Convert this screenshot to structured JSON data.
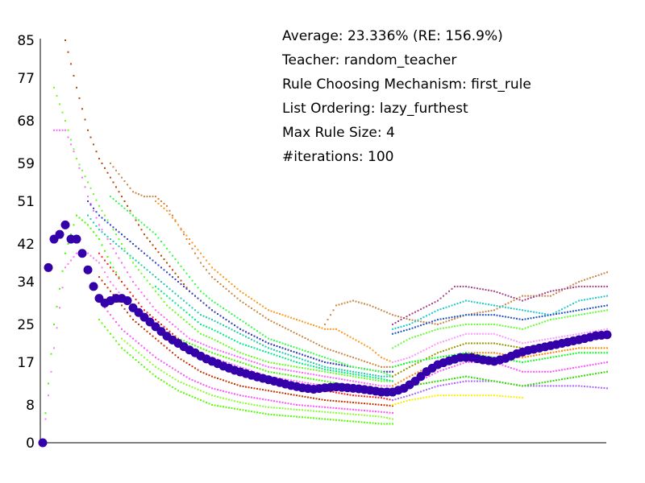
{
  "chart_data": {
    "type": "scatter",
    "title": "",
    "xlabel": "",
    "ylabel": "",
    "ylim": [
      0,
      85
    ],
    "xlim": [
      0,
      100
    ],
    "yticks": [
      0,
      8,
      17,
      25,
      34,
      42,
      51,
      59,
      68,
      77,
      85
    ],
    "grid": false,
    "annotations": [
      "Average: 23.336% (RE: 156.9%)",
      "Teacher: random_teacher",
      "Rule Choosing Mechanism: first_rule",
      "List Ordering: lazy_furthest",
      "Max Rule Size: 4",
      "#iterations: 100"
    ],
    "average_series": {
      "color": "#3300aa",
      "x": [
        0,
        1,
        2,
        3,
        4,
        5,
        6,
        7,
        8,
        9,
        10,
        11,
        12,
        13,
        14,
        15,
        16,
        17,
        18,
        19,
        20,
        21,
        22,
        23,
        24,
        25,
        26,
        27,
        28,
        29,
        30,
        32,
        34,
        36,
        38,
        40,
        42,
        44,
        46,
        48,
        50,
        52,
        54,
        56,
        58,
        60,
        62,
        64,
        66,
        68,
        70,
        72,
        74,
        76,
        78,
        80,
        82,
        84,
        86,
        88,
        90,
        92,
        94,
        96,
        98,
        100
      ],
      "y": [
        0,
        37,
        43,
        44,
        46,
        43,
        43,
        40,
        36.5,
        33,
        30.5,
        29.5,
        30,
        30.5,
        30.5,
        30,
        28.5,
        27.5,
        26.5,
        25.5,
        24.5,
        23.5,
        22.5,
        21.7,
        21,
        20.3,
        19.6,
        19,
        18.3,
        17.7,
        17.2,
        16.2,
        15.3,
        14.6,
        13.9,
        13.3,
        12.7,
        12.1,
        11.6,
        11.3,
        11.6,
        11.8,
        11.6,
        11.4,
        11.1,
        10.7,
        10.7,
        11.5,
        13,
        15,
        16.5,
        17.3,
        18,
        18,
        17.5,
        17.2,
        17.8,
        18.8,
        19.5,
        20,
        20.5,
        21,
        21.5,
        22,
        22.6,
        22.8
      ]
    },
    "series": [
      {
        "color": "#ff77ff",
        "x": [
          0,
          2,
          4,
          6,
          8,
          10,
          12,
          14,
          16,
          18,
          20,
          22,
          24,
          26,
          28,
          30,
          35,
          40,
          45,
          50,
          55,
          60,
          62
        ],
        "y": [
          0,
          20,
          37,
          40,
          40,
          38,
          34,
          31,
          28,
          26,
          24,
          22,
          21,
          20,
          19,
          18,
          16,
          14,
          13,
          12,
          12,
          11,
          11
        ]
      },
      {
        "color": "#44ff00",
        "x": [
          0,
          2,
          4,
          6,
          8,
          10,
          12,
          14,
          16,
          18,
          20,
          22,
          24,
          26,
          28,
          30,
          35,
          40,
          45,
          50,
          55,
          60,
          62
        ],
        "y": [
          0,
          25,
          40,
          48,
          46,
          43,
          38,
          34,
          31,
          28,
          26,
          24,
          22,
          21,
          20,
          19,
          17,
          15,
          14,
          13,
          12,
          11.5,
          11
        ]
      },
      {
        "color": "#ff66ff",
        "x": [
          2,
          4,
          6,
          8,
          10,
          12,
          14,
          16,
          18,
          20,
          22,
          24,
          26,
          28,
          30,
          35,
          40,
          45,
          50,
          55,
          60,
          62
        ],
        "y": [
          66,
          66,
          60,
          52,
          46,
          42,
          38,
          34,
          31,
          28,
          26,
          24,
          22,
          21,
          20,
          18,
          16,
          15,
          14,
          13,
          12,
          12
        ]
      },
      {
        "color": "#66ff22",
        "x": [
          2,
          4,
          6,
          8,
          10,
          12,
          14,
          16,
          18,
          20,
          22,
          24,
          26,
          28,
          30,
          35,
          40,
          45,
          50,
          55,
          60,
          62
        ],
        "y": [
          75,
          68,
          60,
          55,
          50,
          46,
          42,
          38,
          35,
          32,
          29,
          27,
          25,
          23,
          22,
          19,
          17,
          16,
          15,
          14,
          13,
          13
        ]
      },
      {
        "color": "#bb4400",
        "x": [
          4,
          6,
          8,
          10,
          12,
          14,
          16,
          18,
          20,
          22,
          24,
          26,
          28,
          30,
          35,
          40,
          45,
          50,
          55,
          60,
          62
        ],
        "y": [
          85,
          75,
          66,
          60,
          56,
          52,
          48,
          44,
          41,
          38,
          35,
          32,
          30,
          28,
          24,
          21,
          19,
          17,
          16,
          15,
          15
        ]
      },
      {
        "color": "#cc8844",
        "x": [
          12,
          14,
          16,
          18,
          20,
          22,
          24,
          26,
          28,
          30,
          35,
          40,
          45,
          50,
          55,
          60,
          62
        ],
        "y": [
          59,
          56,
          53,
          52,
          52,
          50,
          46,
          42,
          38,
          35,
          30,
          26,
          23,
          20,
          18,
          16,
          16
        ]
      },
      {
        "color": "#ff9922",
        "x": [
          20,
          22,
          24,
          26,
          28,
          30,
          35,
          40,
          45,
          50,
          52,
          55,
          58,
          60,
          62
        ],
        "y": [
          51,
          49,
          46,
          43,
          40,
          37,
          32,
          28,
          26,
          24,
          24,
          22,
          20,
          18,
          17
        ]
      },
      {
        "color": "#3344cc",
        "x": [
          8,
          10,
          12,
          14,
          16,
          18,
          20,
          22,
          24,
          26,
          28,
          30,
          35,
          40,
          45,
          50,
          55,
          60,
          62
        ],
        "y": [
          51,
          48,
          46,
          44,
          42,
          40,
          38,
          36,
          34,
          32,
          30,
          28,
          24,
          21,
          19,
          17,
          16,
          15,
          15
        ]
      },
      {
        "color": "#22ccaa",
        "x": [
          8,
          10,
          12,
          14,
          16,
          18,
          20,
          22,
          24,
          26,
          28,
          30,
          35,
          40,
          45,
          50,
          55,
          60,
          62
        ],
        "y": [
          48,
          45,
          43,
          41,
          39,
          37,
          35,
          33,
          31,
          29,
          27,
          26,
          23,
          20,
          18,
          16,
          15,
          14,
          14
        ]
      },
      {
        "color": "#33ff44",
        "x": [
          12,
          14,
          16,
          18,
          20,
          22,
          24,
          26,
          28,
          30,
          35,
          40,
          45,
          50,
          55,
          60,
          62
        ],
        "y": [
          52,
          50,
          48,
          46,
          44,
          41,
          38,
          35,
          32,
          30,
          26,
          22,
          20,
          18,
          16,
          15,
          14
        ]
      },
      {
        "color": "#ff2222",
        "x": [
          10,
          12,
          14,
          16,
          18,
          20,
          22,
          24,
          26,
          28,
          30,
          35,
          40,
          45,
          50,
          55,
          60,
          62
        ],
        "y": [
          40,
          37,
          34,
          31,
          28,
          26,
          24,
          22,
          20,
          18,
          17,
          15,
          13,
          12,
          11,
          10,
          9.5,
          9
        ]
      },
      {
        "color": "#cc3300",
        "x": [
          10,
          12,
          14,
          16,
          18,
          20,
          22,
          24,
          26,
          28,
          30,
          35,
          40,
          45,
          50,
          55,
          60,
          62
        ],
        "y": [
          35,
          32,
          29,
          26,
          24,
          22,
          20,
          18,
          16.5,
          15,
          14,
          12,
          11,
          10,
          9,
          8.5,
          8,
          7.8
        ]
      },
      {
        "color": "#ff55ff",
        "x": [
          10,
          12,
          14,
          16,
          18,
          20,
          22,
          24,
          26,
          28,
          30,
          35,
          40,
          45,
          50,
          55,
          60,
          62
        ],
        "y": [
          30,
          27,
          24,
          22,
          20,
          18,
          16.5,
          15,
          13.5,
          12.5,
          11.5,
          10,
          9,
          8,
          7.5,
          7,
          6.5,
          6.3
        ]
      },
      {
        "color": "#55ff00",
        "x": [
          10,
          12,
          14,
          16,
          18,
          20,
          22,
          24,
          26,
          28,
          30,
          35,
          40,
          45,
          50,
          55,
          60,
          62
        ],
        "y": [
          26,
          23,
          20,
          18,
          16,
          14,
          12.5,
          11,
          10,
          9,
          8,
          7,
          6,
          5.5,
          5,
          4.5,
          4,
          4
        ]
      },
      {
        "color": "#00ee88",
        "x": [
          20,
          22,
          24,
          26,
          28,
          30,
          35,
          40,
          45,
          50,
          55,
          60,
          62
        ],
        "y": [
          33,
          31,
          29,
          27,
          25,
          24,
          21,
          19,
          17,
          15.5,
          14.5,
          13.5,
          13
        ]
      },
      {
        "color": "#88ff33",
        "x": [
          14,
          16,
          18,
          20,
          22,
          24,
          26,
          28,
          30,
          35,
          40,
          45,
          50,
          55,
          60,
          62
        ],
        "y": [
          22,
          20,
          18,
          16,
          14.5,
          13,
          12,
          11,
          10,
          8.5,
          7.5,
          7,
          6.5,
          6,
          5.5,
          5
        ]
      },
      {
        "color": "#cc8844",
        "x": [
          50,
          52,
          55,
          58,
          60,
          62,
          65,
          70,
          75,
          80,
          85,
          90,
          95,
          100
        ],
        "y": [
          25,
          29,
          30,
          29,
          28,
          27,
          26,
          25,
          27,
          28,
          31,
          31,
          34,
          36
        ]
      },
      {
        "color": "#aa4488",
        "x": [
          62,
          65,
          70,
          73,
          75,
          80,
          85,
          90,
          95,
          100
        ],
        "y": [
          25,
          27,
          30,
          33,
          33,
          32,
          30,
          32,
          33,
          33
        ]
      },
      {
        "color": "#22cccc",
        "x": [
          62,
          65,
          70,
          75,
          80,
          85,
          90,
          95,
          100
        ],
        "y": [
          24,
          25,
          28,
          30,
          29,
          28,
          27,
          30,
          31
        ]
      },
      {
        "color": "#2255cc",
        "x": [
          62,
          65,
          70,
          75,
          80,
          85,
          90,
          95,
          100
        ],
        "y": [
          23,
          24,
          26,
          27,
          27,
          26,
          27,
          28,
          29
        ]
      },
      {
        "color": "#66ff33",
        "x": [
          62,
          65,
          70,
          75,
          80,
          85,
          90,
          95,
          100
        ],
        "y": [
          20,
          22,
          24,
          25,
          25,
          24,
          26,
          27,
          28
        ]
      },
      {
        "color": "#999900",
        "x": [
          62,
          65,
          70,
          75,
          80,
          85,
          90,
          95,
          100
        ],
        "y": [
          14,
          16,
          19,
          21,
          21,
          20,
          21,
          22,
          23
        ]
      },
      {
        "color": "#ff8800",
        "x": [
          62,
          65,
          70,
          75,
          80,
          85,
          90,
          95,
          100
        ],
        "y": [
          12,
          14,
          17,
          19,
          19,
          18,
          19,
          20,
          20
        ]
      },
      {
        "color": "#ff55ff",
        "x": [
          62,
          65,
          70,
          75,
          80,
          85,
          90,
          95,
          100
        ],
        "y": [
          10,
          12,
          15,
          17,
          17,
          15,
          15,
          16,
          17
        ]
      },
      {
        "color": "#aa66ff",
        "x": [
          62,
          65,
          70,
          75,
          80,
          85,
          90,
          95,
          100
        ],
        "y": [
          9,
          10,
          12,
          13,
          13,
          12,
          12,
          12,
          11.5
        ]
      },
      {
        "color": "#ffee00",
        "x": [
          62,
          65,
          70,
          75,
          80,
          85
        ],
        "y": [
          8,
          9,
          10,
          10,
          10,
          9.5
        ]
      },
      {
        "color": "#11ff22",
        "x": [
          62,
          65,
          70,
          75,
          80,
          85,
          90,
          95,
          100
        ],
        "y": [
          16,
          17,
          18,
          19,
          18,
          17,
          18,
          19,
          19
        ]
      },
      {
        "color": "#33dd00",
        "x": [
          62,
          65,
          70,
          75,
          80,
          85,
          90,
          95,
          100
        ],
        "y": [
          11,
          12,
          13,
          14,
          13,
          12,
          13,
          14,
          15
        ]
      },
      {
        "color": "#ff99ff",
        "x": [
          62,
          65,
          70,
          75,
          80,
          85,
          90,
          95,
          100
        ],
        "y": [
          17,
          18,
          21,
          23,
          23,
          21,
          22,
          23,
          24
        ]
      }
    ]
  }
}
